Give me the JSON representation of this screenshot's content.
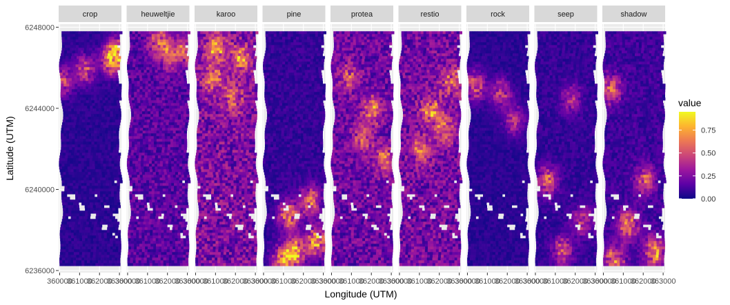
{
  "chart_data": {
    "type": "heatmap",
    "facet_by": "class",
    "facets": [
      "crop",
      "heuweltjie",
      "karoo",
      "pine",
      "protea",
      "restio",
      "rock",
      "seep",
      "shadow"
    ],
    "xlabel": "Longitude (UTM)",
    "ylabel": "Latitude (UTM)",
    "x_ticks": [
      360000,
      361000,
      362000,
      363000
    ],
    "x_tick_labels": [
      "360000",
      "361000",
      "362000",
      "363000"
    ],
    "y_ticks": [
      6236000,
      6240000,
      6244000,
      6248000
    ],
    "y_tick_labels": [
      "6236000",
      "6240000",
      "6244000",
      "6248000"
    ],
    "xlim": [
      359950,
      363100
    ],
    "ylim": [
      6235900,
      6248150
    ],
    "grid": true,
    "legend": {
      "title": "value",
      "placement": "right",
      "range": [
        0,
        0.95
      ],
      "breaks": [
        0.0,
        0.25,
        0.5,
        0.75
      ],
      "break_labels": [
        "0.00",
        "0.25",
        "0.50",
        "0.75"
      ],
      "colors": [
        "#0d0887",
        "#5c01a6",
        "#9c179e",
        "#cc4778",
        "#ed7953",
        "#fdb42f",
        "#f0f921"
      ]
    },
    "panels": [
      {
        "name": "crop",
        "mean": 0.06,
        "hot": [
          {
            "x": 362800,
            "y": 6246800,
            "v": 0.7
          },
          {
            "x": 362500,
            "y": 6246400,
            "v": 0.55
          },
          {
            "x": 361200,
            "y": 6246000,
            "v": 0.5
          },
          {
            "x": 360100,
            "y": 6245400,
            "v": 0.45
          }
        ]
      },
      {
        "name": "heuweltjie",
        "mean": 0.16,
        "hot": [
          {
            "x": 361500,
            "y": 6247400,
            "v": 0.45
          },
          {
            "x": 362000,
            "y": 6246700,
            "v": 0.35
          },
          {
            "x": 362700,
            "y": 6246900,
            "v": 0.4
          }
        ]
      },
      {
        "name": "karoo",
        "mean": 0.24,
        "hot": [
          {
            "x": 361000,
            "y": 6247000,
            "v": 0.55
          },
          {
            "x": 362200,
            "y": 6246500,
            "v": 0.5
          },
          {
            "x": 360800,
            "y": 6245500,
            "v": 0.45
          },
          {
            "x": 361800,
            "y": 6244500,
            "v": 0.4
          }
        ]
      },
      {
        "name": "pine",
        "mean": 0.08,
        "hot": [
          {
            "x": 361500,
            "y": 6237000,
            "v": 0.8
          },
          {
            "x": 362600,
            "y": 6237500,
            "v": 0.75
          },
          {
            "x": 360900,
            "y": 6236500,
            "v": 0.7
          },
          {
            "x": 362300,
            "y": 6239500,
            "v": 0.6
          },
          {
            "x": 361200,
            "y": 6238800,
            "v": 0.65
          }
        ]
      },
      {
        "name": "protea",
        "mean": 0.2,
        "hot": [
          {
            "x": 362000,
            "y": 6244000,
            "v": 0.45
          },
          {
            "x": 361500,
            "y": 6242500,
            "v": 0.4
          },
          {
            "x": 362600,
            "y": 6241500,
            "v": 0.45
          },
          {
            "x": 360800,
            "y": 6245600,
            "v": 0.35
          }
        ]
      },
      {
        "name": "restio",
        "mean": 0.22,
        "hot": [
          {
            "x": 361500,
            "y": 6244000,
            "v": 0.5
          },
          {
            "x": 362200,
            "y": 6243000,
            "v": 0.45
          },
          {
            "x": 361000,
            "y": 6242000,
            "v": 0.4
          },
          {
            "x": 362500,
            "y": 6245400,
            "v": 0.4
          }
        ]
      },
      {
        "name": "rock",
        "mean": 0.06,
        "hot": [
          {
            "x": 360300,
            "y": 6245200,
            "v": 0.55
          },
          {
            "x": 361600,
            "y": 6244800,
            "v": 0.45
          },
          {
            "x": 362300,
            "y": 6243500,
            "v": 0.4
          }
        ]
      },
      {
        "name": "seep",
        "mean": 0.08,
        "hot": [
          {
            "x": 360500,
            "y": 6240500,
            "v": 0.55
          },
          {
            "x": 361300,
            "y": 6237000,
            "v": 0.5
          },
          {
            "x": 362300,
            "y": 6238500,
            "v": 0.45
          },
          {
            "x": 361700,
            "y": 6244500,
            "v": 0.35
          }
        ]
      },
      {
        "name": "shadow",
        "mean": 0.1,
        "hot": [
          {
            "x": 360300,
            "y": 6245000,
            "v": 0.55
          },
          {
            "x": 361200,
            "y": 6238300,
            "v": 0.65
          },
          {
            "x": 362500,
            "y": 6237000,
            "v": 0.7
          },
          {
            "x": 360500,
            "y": 6236600,
            "v": 0.6
          },
          {
            "x": 362000,
            "y": 6240500,
            "v": 0.5
          }
        ]
      }
    ]
  }
}
